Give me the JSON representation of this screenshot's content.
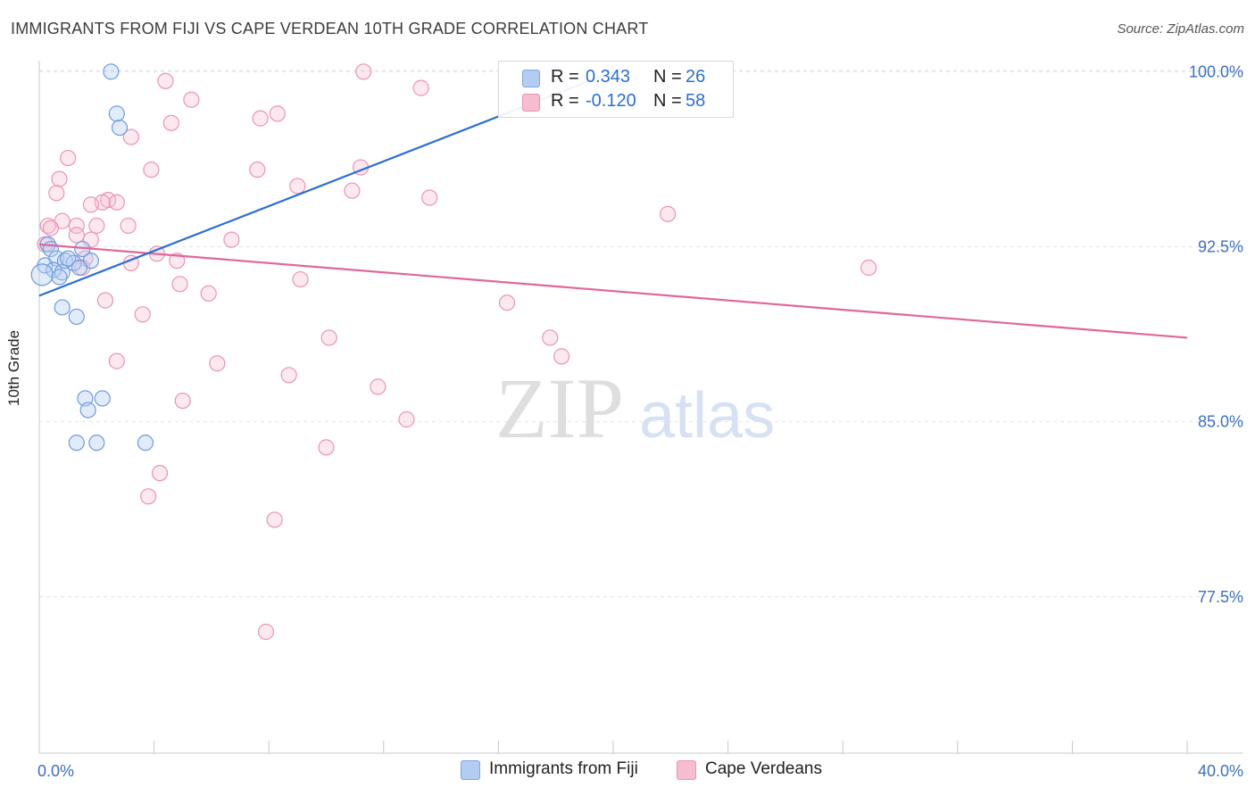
{
  "title": "IMMIGRANTS FROM FIJI VS CAPE VERDEAN 10TH GRADE CORRELATION CHART",
  "source": "Source: ZipAtlas.com",
  "watermark": {
    "zip": "ZIP",
    "atlas": "atlas"
  },
  "colors": {
    "blue": "#2a6fd6",
    "blue_fill": "#b3cdf2",
    "blue_text": "#2a6fd6",
    "pink": "#e0679a",
    "pink_fill": "#f6bcd0",
    "axis_text": "#3a6fc8"
  },
  "legend": {
    "fiji": {
      "r_label": "R =",
      "r_value": "0.343",
      "n_label": "N =",
      "n_value": "26"
    },
    "cape": {
      "r_label": "R =",
      "r_value": "-0.120",
      "n_label": "N =",
      "n_value": "58"
    }
  },
  "bottom_legend": {
    "fiji": "Immigrants from Fiji",
    "cape": "Cape Verdeans"
  },
  "chart_data": {
    "type": "scatter",
    "title": "IMMIGRANTS FROM FIJI VS CAPE VERDEAN 10TH GRADE CORRELATION CHART",
    "xlabel": "",
    "ylabel": "10th Grade",
    "xlim": [
      0,
      40
    ],
    "ylim": [
      70.8,
      100.7
    ],
    "x_tick_labels": [
      "0.0%",
      "40.0%"
    ],
    "y_ticks": [
      77.5,
      85.0,
      92.5,
      100.0
    ],
    "y_tick_labels": [
      "77.5%",
      "85.0%",
      "92.5%",
      "100.0%"
    ],
    "grid": true,
    "series": [
      {
        "name": "Immigrants from Fiji",
        "color": "#2a6fd6",
        "trend": [
          [
            0.0,
            90.4
          ],
          [
            20.0,
            100.0
          ]
        ],
        "points": [
          [
            2.5,
            100.0
          ],
          [
            2.7,
            98.2
          ],
          [
            2.8,
            97.6
          ],
          [
            0.3,
            92.6
          ],
          [
            0.4,
            92.4
          ],
          [
            0.6,
            92.0
          ],
          [
            0.2,
            91.7
          ],
          [
            0.5,
            91.5
          ],
          [
            0.8,
            91.4
          ],
          [
            1.5,
            92.4
          ],
          [
            1.8,
            91.9
          ],
          [
            0.9,
            91.9
          ],
          [
            1.2,
            91.8
          ],
          [
            0.1,
            91.3
          ],
          [
            0.8,
            89.9
          ],
          [
            1.3,
            89.5
          ],
          [
            1.6,
            86.0
          ],
          [
            2.2,
            86.0
          ],
          [
            1.7,
            85.5
          ],
          [
            1.3,
            84.1
          ],
          [
            2.0,
            84.1
          ],
          [
            3.7,
            84.1
          ],
          [
            1.0,
            92.0
          ],
          [
            1.4,
            91.6
          ],
          [
            0.7,
            91.2
          ],
          [
            18.0,
            99.9
          ]
        ]
      },
      {
        "name": "Cape Verdeans",
        "color": "#e0679a",
        "trend": [
          [
            0.0,
            92.6
          ],
          [
            40.0,
            88.6
          ]
        ],
        "points": [
          [
            11.3,
            100.0
          ],
          [
            4.4,
            99.6
          ],
          [
            5.3,
            98.8
          ],
          [
            13.3,
            99.3
          ],
          [
            8.3,
            98.2
          ],
          [
            7.7,
            98.0
          ],
          [
            4.6,
            97.8
          ],
          [
            3.2,
            97.2
          ],
          [
            1.0,
            96.3
          ],
          [
            3.9,
            95.8
          ],
          [
            7.6,
            95.8
          ],
          [
            11.2,
            95.9
          ],
          [
            0.7,
            95.4
          ],
          [
            9.0,
            95.1
          ],
          [
            10.9,
            94.9
          ],
          [
            0.6,
            94.8
          ],
          [
            13.6,
            94.6
          ],
          [
            2.4,
            94.5
          ],
          [
            2.7,
            94.4
          ],
          [
            2.2,
            94.4
          ],
          [
            1.8,
            94.3
          ],
          [
            21.9,
            93.9
          ],
          [
            0.8,
            93.6
          ],
          [
            0.3,
            93.4
          ],
          [
            2.0,
            93.4
          ],
          [
            3.1,
            93.4
          ],
          [
            1.3,
            93.4
          ],
          [
            0.4,
            93.3
          ],
          [
            1.3,
            93.0
          ],
          [
            1.8,
            92.8
          ],
          [
            6.7,
            92.8
          ],
          [
            0.2,
            92.6
          ],
          [
            4.1,
            92.2
          ],
          [
            4.8,
            91.9
          ],
          [
            3.2,
            91.8
          ],
          [
            1.6,
            92.0
          ],
          [
            1.5,
            91.6
          ],
          [
            28.9,
            91.6
          ],
          [
            9.1,
            91.1
          ],
          [
            4.9,
            90.9
          ],
          [
            5.9,
            90.5
          ],
          [
            2.3,
            90.2
          ],
          [
            16.3,
            90.1
          ],
          [
            3.6,
            89.6
          ],
          [
            10.1,
            88.6
          ],
          [
            17.8,
            88.6
          ],
          [
            18.2,
            87.8
          ],
          [
            2.7,
            87.6
          ],
          [
            6.2,
            87.5
          ],
          [
            8.7,
            87.0
          ],
          [
            11.8,
            86.5
          ],
          [
            5.0,
            85.9
          ],
          [
            12.8,
            85.1
          ],
          [
            10.0,
            83.9
          ],
          [
            4.2,
            82.8
          ],
          [
            3.8,
            81.8
          ],
          [
            8.2,
            80.8
          ],
          [
            7.9,
            76.0
          ]
        ]
      }
    ]
  }
}
